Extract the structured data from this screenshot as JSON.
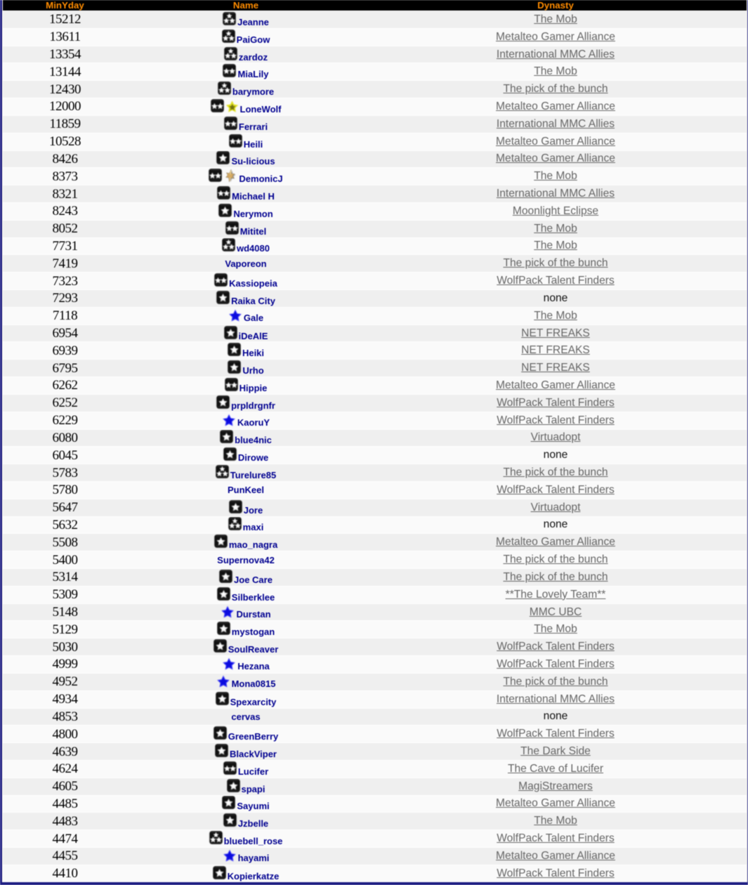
{
  "table": {
    "columns": [
      {
        "key": "minyday",
        "label": "MinYday"
      },
      {
        "key": "name",
        "label": "Name"
      },
      {
        "key": "dynasty",
        "label": "Dynasty"
      }
    ],
    "rows": [
      {
        "minyday": "15212",
        "icons": [
          "badge-3-stars"
        ],
        "name": "Jeanne",
        "dynasty": "The Mob",
        "dynasty_is_link": true
      },
      {
        "minyday": "13611",
        "icons": [
          "badge-3-stars"
        ],
        "name": "PaiGow",
        "dynasty": "Metalteo Gamer Alliance",
        "dynasty_is_link": true
      },
      {
        "minyday": "13354",
        "icons": [
          "badge-3-stars"
        ],
        "name": "zardoz",
        "dynasty": "International MMC Allies",
        "dynasty_is_link": true
      },
      {
        "minyday": "13144",
        "icons": [
          "badge-2-stars"
        ],
        "name": "MiaLily",
        "dynasty": "The Mob",
        "dynasty_is_link": true
      },
      {
        "minyday": "12430",
        "icons": [
          "badge-3-stars"
        ],
        "name": "barymore",
        "dynasty": "The pick of the bunch",
        "dynasty_is_link": true
      },
      {
        "minyday": "12000",
        "icons": [
          "badge-2-stars",
          "gold-star"
        ],
        "name": "LoneWolf",
        "dynasty": "Metalteo Gamer Alliance",
        "dynasty_is_link": true
      },
      {
        "minyday": "11859",
        "icons": [
          "badge-2-stars"
        ],
        "name": "Ferrari",
        "dynasty": "International MMC Allies",
        "dynasty_is_link": true
      },
      {
        "minyday": "10528",
        "icons": [
          "badge-2-stars"
        ],
        "name": "Heili",
        "dynasty": "Metalteo Gamer Alliance",
        "dynasty_is_link": true
      },
      {
        "minyday": "8426",
        "icons": [
          "badge-1-star"
        ],
        "name": "Su-licious",
        "dynasty": "Metalteo Gamer Alliance",
        "dynasty_is_link": true
      },
      {
        "minyday": "8373",
        "icons": [
          "badge-2-stars",
          "tan-sparkle"
        ],
        "name": "DemonicJ",
        "dynasty": "The Mob",
        "dynasty_is_link": true
      },
      {
        "minyday": "8321",
        "icons": [
          "badge-2-stars"
        ],
        "name": "Michael H",
        "dynasty": "International MMC Allies",
        "dynasty_is_link": true
      },
      {
        "minyday": "8243",
        "icons": [
          "badge-1-star"
        ],
        "name": "Nerymon",
        "dynasty": "Moonlight Eclipse",
        "dynasty_is_link": true
      },
      {
        "minyday": "8052",
        "icons": [
          "badge-2-stars"
        ],
        "name": "Mititel",
        "dynasty": "The Mob",
        "dynasty_is_link": true
      },
      {
        "minyday": "7731",
        "icons": [
          "badge-3-stars"
        ],
        "name": "wd4080",
        "dynasty": "The Mob",
        "dynasty_is_link": true
      },
      {
        "minyday": "7419",
        "icons": [],
        "name": "Vaporeon",
        "dynasty": "The pick of the bunch",
        "dynasty_is_link": true
      },
      {
        "minyday": "7323",
        "icons": [
          "badge-2-stars"
        ],
        "name": "Kassiopeia",
        "dynasty": "WolfPack Talent Finders",
        "dynasty_is_link": true
      },
      {
        "minyday": "7293",
        "icons": [
          "badge-1-star"
        ],
        "name": "Raika City",
        "dynasty": "none",
        "dynasty_is_link": false
      },
      {
        "minyday": "7118",
        "icons": [
          "blue-star"
        ],
        "name": "Gale",
        "dynasty": "The Mob",
        "dynasty_is_link": true
      },
      {
        "minyday": "6954",
        "icons": [
          "badge-1-star"
        ],
        "name": "iDeAlE",
        "dynasty": "NET FREAKS",
        "dynasty_is_link": true
      },
      {
        "minyday": "6939",
        "icons": [
          "badge-1-star"
        ],
        "name": "Heiki",
        "dynasty": "NET FREAKS",
        "dynasty_is_link": true
      },
      {
        "minyday": "6795",
        "icons": [
          "badge-1-star"
        ],
        "name": "Urho",
        "dynasty": "NET FREAKS",
        "dynasty_is_link": true
      },
      {
        "minyday": "6262",
        "icons": [
          "badge-2-stars"
        ],
        "name": "Hippie",
        "dynasty": "Metalteo Gamer Alliance",
        "dynasty_is_link": true
      },
      {
        "minyday": "6252",
        "icons": [
          "badge-1-star"
        ],
        "name": "prpldrgnfr",
        "dynasty": "WolfPack Talent Finders",
        "dynasty_is_link": true
      },
      {
        "minyday": "6229",
        "icons": [
          "blue-star"
        ],
        "name": "KaoruY",
        "dynasty": "WolfPack Talent Finders",
        "dynasty_is_link": true
      },
      {
        "minyday": "6080",
        "icons": [
          "badge-1-star"
        ],
        "name": "blue4nic",
        "dynasty": "Virtuadopt",
        "dynasty_is_link": true
      },
      {
        "minyday": "6045",
        "icons": [
          "badge-1-star"
        ],
        "name": "Dirowe",
        "dynasty": "none",
        "dynasty_is_link": false
      },
      {
        "minyday": "5783",
        "icons": [
          "badge-3-stars"
        ],
        "name": "Turelure85",
        "dynasty": "The pick of the bunch",
        "dynasty_is_link": true
      },
      {
        "minyday": "5780",
        "icons": [],
        "name": "PunKeel",
        "dynasty": "WolfPack Talent Finders",
        "dynasty_is_link": true
      },
      {
        "minyday": "5647",
        "icons": [
          "badge-1-star"
        ],
        "name": "Jore",
        "dynasty": "Virtuadopt",
        "dynasty_is_link": true
      },
      {
        "minyday": "5632",
        "icons": [
          "badge-3-stars"
        ],
        "name": "maxi",
        "dynasty": "none",
        "dynasty_is_link": false
      },
      {
        "minyday": "5508",
        "icons": [
          "badge-1-star"
        ],
        "name": "mao_nagra",
        "dynasty": "Metalteo Gamer Alliance",
        "dynasty_is_link": true
      },
      {
        "minyday": "5400",
        "icons": [],
        "name": "Supernova42",
        "dynasty": "The pick of the bunch",
        "dynasty_is_link": true
      },
      {
        "minyday": "5314",
        "icons": [
          "badge-1-star"
        ],
        "name": "Joe Care",
        "dynasty": "The pick of the bunch",
        "dynasty_is_link": true
      },
      {
        "minyday": "5309",
        "icons": [
          "badge-1-star"
        ],
        "name": "Silberklee",
        "dynasty": "**The Lovely Team**",
        "dynasty_is_link": true
      },
      {
        "minyday": "5148",
        "icons": [
          "blue-star"
        ],
        "name": "Durstan",
        "dynasty": "MMC UBC",
        "dynasty_is_link": true
      },
      {
        "minyday": "5129",
        "icons": [
          "badge-1-star"
        ],
        "name": "mystogan",
        "dynasty": "The Mob",
        "dynasty_is_link": true
      },
      {
        "minyday": "5030",
        "icons": [
          "badge-1-star"
        ],
        "name": "SoulReaver",
        "dynasty": "WolfPack Talent Finders",
        "dynasty_is_link": true
      },
      {
        "minyday": "4999",
        "icons": [
          "blue-star"
        ],
        "name": "Hezana",
        "dynasty": "WolfPack Talent Finders",
        "dynasty_is_link": true
      },
      {
        "minyday": "4952",
        "icons": [
          "blue-star"
        ],
        "name": "Mona0815",
        "dynasty": "The pick of the bunch",
        "dynasty_is_link": true
      },
      {
        "minyday": "4934",
        "icons": [
          "badge-1-star"
        ],
        "name": "Spexarcity",
        "dynasty": "International MMC Allies",
        "dynasty_is_link": true
      },
      {
        "minyday": "4853",
        "icons": [],
        "name": "cervas",
        "dynasty": "none",
        "dynasty_is_link": false
      },
      {
        "minyday": "4800",
        "icons": [
          "badge-1-star"
        ],
        "name": "GreenBerry",
        "dynasty": "WolfPack Talent Finders",
        "dynasty_is_link": true
      },
      {
        "minyday": "4639",
        "icons": [
          "badge-1-star"
        ],
        "name": "BlackViper",
        "dynasty": "The Dark Side",
        "dynasty_is_link": true
      },
      {
        "minyday": "4624",
        "icons": [
          "badge-2-stars"
        ],
        "name": "Lucifer",
        "dynasty": "The Cave of Lucifer",
        "dynasty_is_link": true
      },
      {
        "minyday": "4605",
        "icons": [
          "badge-1-star"
        ],
        "name": "spapi",
        "dynasty": "MagiStreamers",
        "dynasty_is_link": true
      },
      {
        "minyday": "4485",
        "icons": [
          "badge-1-star"
        ],
        "name": "Sayumi",
        "dynasty": "Metalteo Gamer Alliance",
        "dynasty_is_link": true
      },
      {
        "minyday": "4483",
        "icons": [
          "badge-1-star"
        ],
        "name": "Jzbelle",
        "dynasty": "The Mob",
        "dynasty_is_link": true
      },
      {
        "minyday": "4474",
        "icons": [
          "badge-3-stars"
        ],
        "name": "bluebell_rose",
        "dynasty": "WolfPack Talent Finders",
        "dynasty_is_link": true
      },
      {
        "minyday": "4455",
        "icons": [
          "blue-star"
        ],
        "name": "hayami",
        "dynasty": "Metalteo Gamer Alliance",
        "dynasty_is_link": true
      },
      {
        "minyday": "4410",
        "icons": [
          "badge-1-star"
        ],
        "name": "Kopierkatze",
        "dynasty": "WolfPack Talent Finders",
        "dynasty_is_link": true
      }
    ]
  },
  "colors": {
    "page_border": "#1e1e82",
    "header_bg": "#000000",
    "header_text": "#ff8c00",
    "row_odd_bg": "#efefef",
    "row_even_bg": "#fafafa",
    "name_text": "#000090",
    "minyday_text": "#000000",
    "dynasty_link": "#666666",
    "dynasty_none_text": "#111111"
  }
}
